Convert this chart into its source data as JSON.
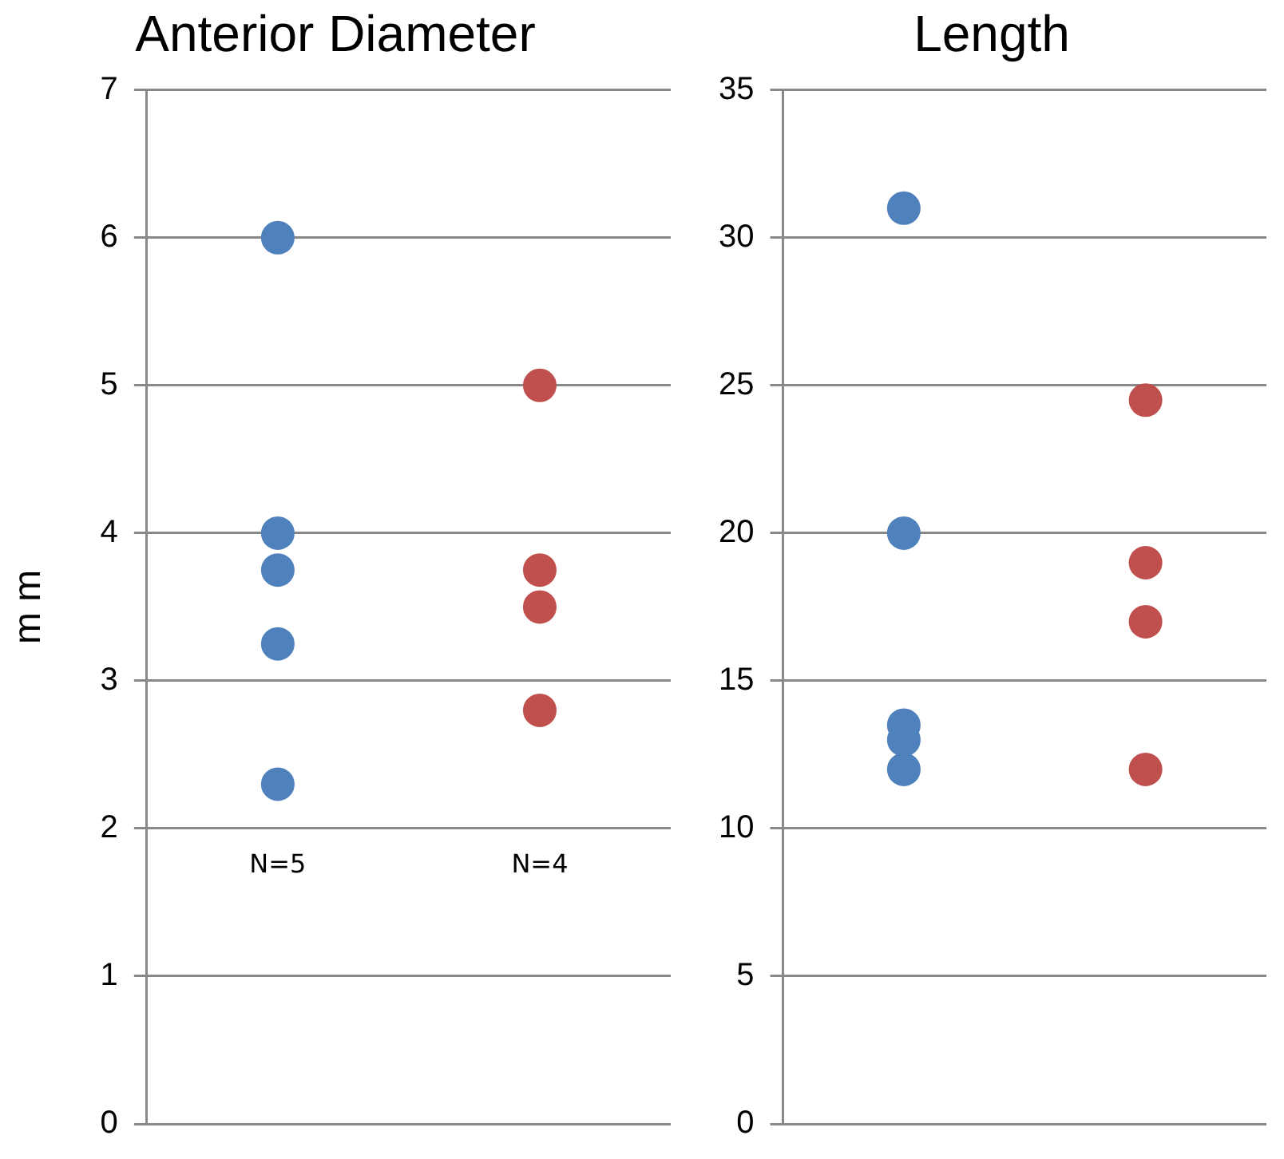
{
  "chart_data": [
    {
      "type": "scatter",
      "title": "Anterior Diameter",
      "ylabel": "m m",
      "categories": [
        null,
        null
      ],
      "ylim": [
        0,
        7
      ],
      "yticks": [
        0,
        1,
        2,
        3,
        4,
        5,
        6,
        7
      ],
      "grid": "y",
      "legend": false,
      "marker": "circle",
      "tick_labels": "y",
      "series": [
        {
          "colors": [
            "#4f81bd",
            "#c0504d"
          ],
          "values": [
            6,
            5
          ]
        },
        {
          "colors": [
            "#4f81bd",
            "#c0504d"
          ],
          "values": [
            4,
            3.75
          ]
        },
        {
          "colors": [
            "#4f81bd",
            "#c0504d"
          ],
          "values": [
            3.75,
            3.5
          ]
        },
        {
          "colors": [
            "#4f81bd",
            "#c0504d"
          ],
          "values": [
            3.25,
            2.8
          ]
        },
        {
          "colors": [
            "#4f81bd",
            "#c0504d"
          ],
          "values": [
            2.3,
            null
          ]
        }
      ],
      "annotations": [
        "N=5",
        "N=4"
      ]
    },
    {
      "type": "scatter",
      "title": "Length",
      "categories": [
        null,
        null
      ],
      "ylim": [
        0,
        35
      ],
      "yticks": [
        0,
        5,
        10,
        15,
        20,
        25,
        30,
        35
      ],
      "grid": "y",
      "legend": false,
      "marker": "circle",
      "tick_labels": "y",
      "series": [
        {
          "colors": [
            "#4f81bd",
            "#c0504d"
          ],
          "values": [
            31,
            24.5
          ]
        },
        {
          "colors": [
            "#4f81bd",
            "#c0504d"
          ],
          "values": [
            20,
            19
          ]
        },
        {
          "colors": [
            "#4f81bd",
            "#c0504d"
          ],
          "values": [
            13.5,
            17
          ]
        },
        {
          "colors": [
            "#4f81bd",
            "#c0504d"
          ],
          "values": [
            13,
            12
          ]
        },
        {
          "colors": [
            "#4f81bd",
            "#c0504d"
          ],
          "values": [
            12,
            null
          ]
        }
      ]
    }
  ]
}
